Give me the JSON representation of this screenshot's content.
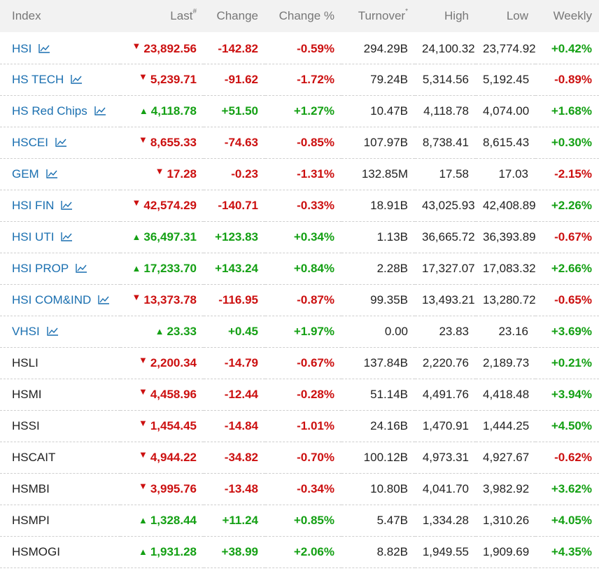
{
  "header": {
    "index": "Index",
    "last": "Last",
    "last_mark": "#",
    "change": "Change",
    "change_pct": "Change %",
    "turnover": "Turnover",
    "turnover_mark": "*",
    "high": "High",
    "low": "Low",
    "weekly": "Weekly"
  },
  "colors": {
    "up": "#14a014",
    "down": "#cc1010",
    "link": "#1a6fb0"
  },
  "rows": [
    {
      "name": "HSI",
      "link": true,
      "dir": "down",
      "last": "23,892.56",
      "change": "-142.82",
      "change_pct": "-0.59%",
      "turnover": "294.29B",
      "high": "24,100.32",
      "low": "23,774.92",
      "weekly": "+0.42%"
    },
    {
      "name": "HS TECH",
      "link": true,
      "dir": "down",
      "last": "5,239.71",
      "change": "-91.62",
      "change_pct": "-1.72%",
      "turnover": "79.24B",
      "high": "5,314.56",
      "low": "5,192.45",
      "weekly": "-0.89%"
    },
    {
      "name": "HS Red Chips",
      "link": true,
      "dir": "up",
      "last": "4,118.78",
      "change": "+51.50",
      "change_pct": "+1.27%",
      "turnover": "10.47B",
      "high": "4,118.78",
      "low": "4,074.00",
      "weekly": "+1.68%"
    },
    {
      "name": "HSCEI",
      "link": true,
      "dir": "down",
      "last": "8,655.33",
      "change": "-74.63",
      "change_pct": "-0.85%",
      "turnover": "107.97B",
      "high": "8,738.41",
      "low": "8,615.43",
      "weekly": "+0.30%"
    },
    {
      "name": "GEM",
      "link": true,
      "dir": "down",
      "last": "17.28",
      "change": "-0.23",
      "change_pct": "-1.31%",
      "turnover": "132.85M",
      "high": "17.58",
      "low": "17.03",
      "weekly": "-2.15%"
    },
    {
      "name": "HSI FIN",
      "link": true,
      "dir": "down",
      "last": "42,574.29",
      "change": "-140.71",
      "change_pct": "-0.33%",
      "turnover": "18.91B",
      "high": "43,025.93",
      "low": "42,408.89",
      "weekly": "+2.26%"
    },
    {
      "name": "HSI UTI",
      "link": true,
      "dir": "up",
      "last": "36,497.31",
      "change": "+123.83",
      "change_pct": "+0.34%",
      "turnover": "1.13B",
      "high": "36,665.72",
      "low": "36,393.89",
      "weekly": "-0.67%"
    },
    {
      "name": "HSI PROP",
      "link": true,
      "dir": "up",
      "last": "17,233.70",
      "change": "+143.24",
      "change_pct": "+0.84%",
      "turnover": "2.28B",
      "high": "17,327.07",
      "low": "17,083.32",
      "weekly": "+2.66%"
    },
    {
      "name": "HSI COM&IND",
      "link": true,
      "dir": "down",
      "last": "13,373.78",
      "change": "-116.95",
      "change_pct": "-0.87%",
      "turnover": "99.35B",
      "high": "13,493.21",
      "low": "13,280.72",
      "weekly": "-0.65%"
    },
    {
      "name": "VHSI",
      "link": true,
      "dir": "up",
      "last": "23.33",
      "change": "+0.45",
      "change_pct": "+1.97%",
      "turnover": "0.00",
      "high": "23.83",
      "low": "23.16",
      "weekly": "+3.69%"
    },
    {
      "name": "HSLI",
      "link": false,
      "dir": "down",
      "last": "2,200.34",
      "change": "-14.79",
      "change_pct": "-0.67%",
      "turnover": "137.84B",
      "high": "2,220.76",
      "low": "2,189.73",
      "weekly": "+0.21%"
    },
    {
      "name": "HSMI",
      "link": false,
      "dir": "down",
      "last": "4,458.96",
      "change": "-12.44",
      "change_pct": "-0.28%",
      "turnover": "51.14B",
      "high": "4,491.76",
      "low": "4,418.48",
      "weekly": "+3.94%"
    },
    {
      "name": "HSSI",
      "link": false,
      "dir": "down",
      "last": "1,454.45",
      "change": "-14.84",
      "change_pct": "-1.01%",
      "turnover": "24.16B",
      "high": "1,470.91",
      "low": "1,444.25",
      "weekly": "+4.50%"
    },
    {
      "name": "HSCAIT",
      "link": false,
      "dir": "down",
      "last": "4,944.22",
      "change": "-34.82",
      "change_pct": "-0.70%",
      "turnover": "100.12B",
      "high": "4,973.31",
      "low": "4,927.67",
      "weekly": "-0.62%"
    },
    {
      "name": "HSMBI",
      "link": false,
      "dir": "down",
      "last": "3,995.76",
      "change": "-13.48",
      "change_pct": "-0.34%",
      "turnover": "10.80B",
      "high": "4,041.70",
      "low": "3,982.92",
      "weekly": "+3.62%"
    },
    {
      "name": "HSMPI",
      "link": false,
      "dir": "up",
      "last": "1,328.44",
      "change": "+11.24",
      "change_pct": "+0.85%",
      "turnover": "5.47B",
      "high": "1,334.28",
      "low": "1,310.26",
      "weekly": "+4.05%"
    },
    {
      "name": "HSMOGI",
      "link": false,
      "dir": "up",
      "last": "1,931.28",
      "change": "+38.99",
      "change_pct": "+2.06%",
      "turnover": "8.82B",
      "high": "1,949.55",
      "low": "1,909.69",
      "weekly": "+4.35%"
    }
  ]
}
